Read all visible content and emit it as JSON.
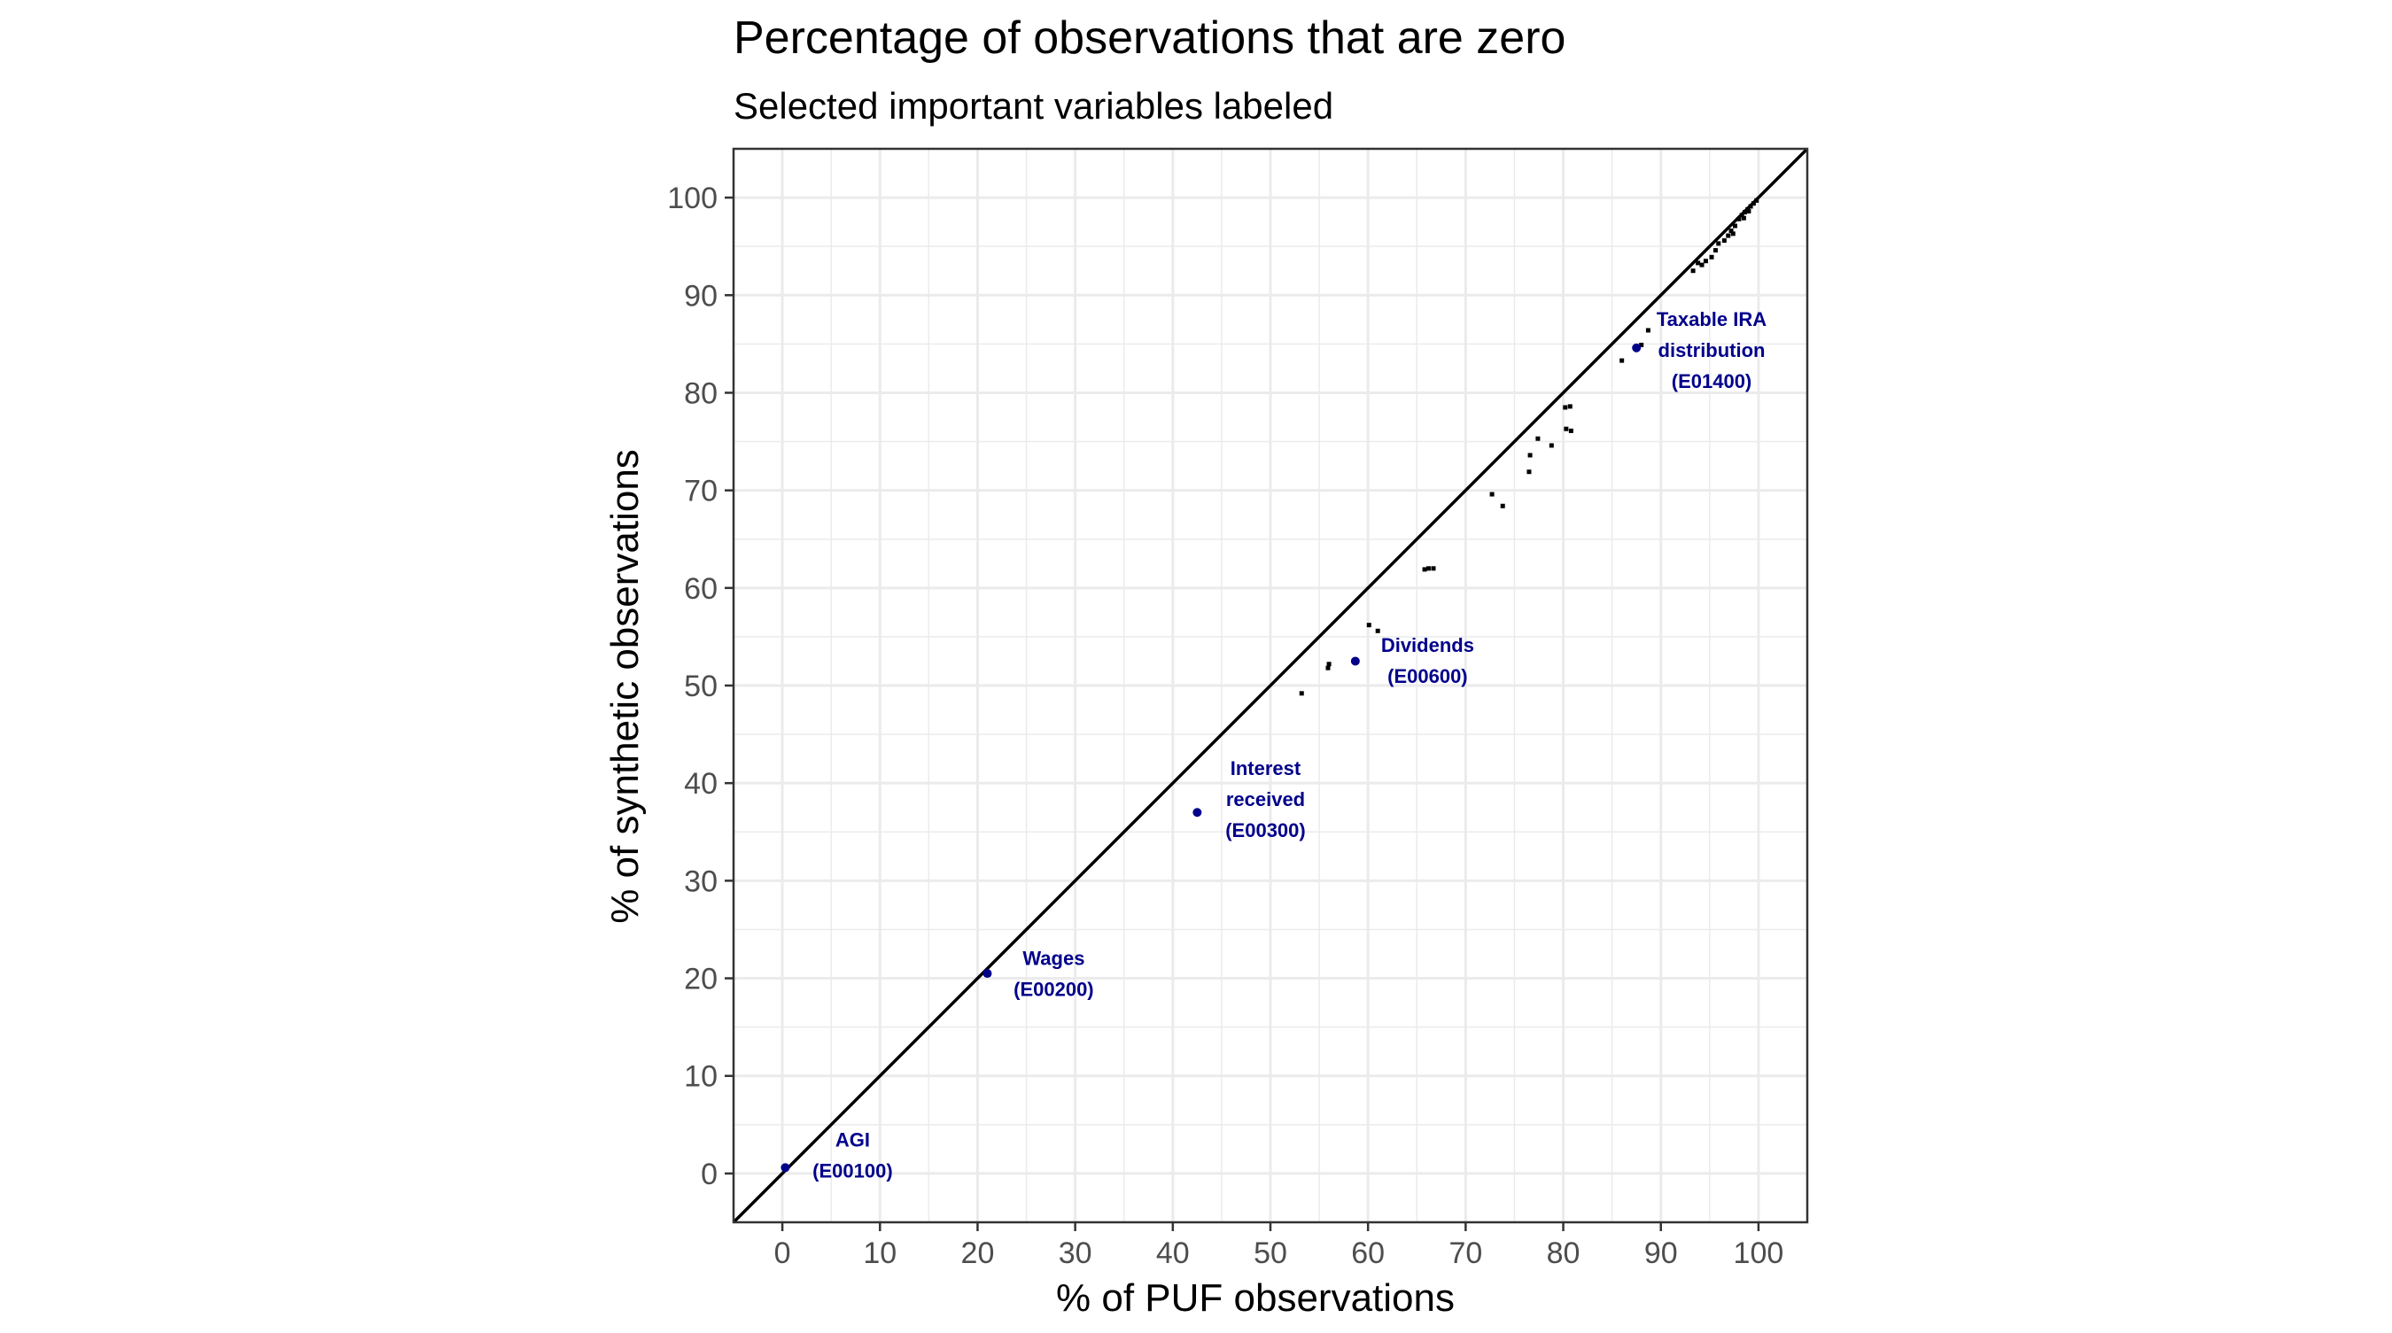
{
  "chart_data": {
    "type": "scatter",
    "title": "Percentage of observations that are zero",
    "subtitle": "Selected important variables labeled",
    "xlabel": "% of PUF observations",
    "ylabel": "% of synthetic observations",
    "xlim": [
      -5,
      105
    ],
    "ylim": [
      -5,
      105
    ],
    "xticks": [
      "0",
      "10",
      "20",
      "30",
      "40",
      "50",
      "60",
      "70",
      "80",
      "90",
      "100"
    ],
    "yticks": [
      "0",
      "10",
      "20",
      "30",
      "40",
      "50",
      "60",
      "70",
      "80",
      "90",
      "100"
    ],
    "grid": true,
    "reference_line": "y = x",
    "colors": {
      "points": "#000000",
      "highlight": "#00008b",
      "grid": "#ebebeb",
      "panel_border": "#333333"
    },
    "points": [
      {
        "x": 53.2,
        "y": 49.2
      },
      {
        "x": 55.9,
        "y": 51.8
      },
      {
        "x": 56.0,
        "y": 52.2
      },
      {
        "x": 60.1,
        "y": 56.2
      },
      {
        "x": 61.0,
        "y": 55.6
      },
      {
        "x": 65.8,
        "y": 61.9
      },
      {
        "x": 66.2,
        "y": 62.0
      },
      {
        "x": 66.7,
        "y": 62.0
      },
      {
        "x": 72.7,
        "y": 69.6
      },
      {
        "x": 73.8,
        "y": 68.4
      },
      {
        "x": 76.5,
        "y": 71.9
      },
      {
        "x": 76.6,
        "y": 73.6
      },
      {
        "x": 77.4,
        "y": 75.3
      },
      {
        "x": 78.8,
        "y": 74.6
      },
      {
        "x": 80.2,
        "y": 78.5
      },
      {
        "x": 80.7,
        "y": 78.6
      },
      {
        "x": 80.3,
        "y": 76.3
      },
      {
        "x": 80.8,
        "y": 76.1
      },
      {
        "x": 86.0,
        "y": 83.3
      },
      {
        "x": 88.0,
        "y": 84.9
      },
      {
        "x": 88.7,
        "y": 86.4
      },
      {
        "x": 93.3,
        "y": 92.5
      },
      {
        "x": 93.8,
        "y": 93.3
      },
      {
        "x": 94.6,
        "y": 93.5
      },
      {
        "x": 95.2,
        "y": 93.9
      },
      {
        "x": 95.6,
        "y": 94.6
      },
      {
        "x": 95.9,
        "y": 95.3
      },
      {
        "x": 96.5,
        "y": 95.6
      },
      {
        "x": 96.9,
        "y": 96.1
      },
      {
        "x": 97.2,
        "y": 96.6
      },
      {
        "x": 97.6,
        "y": 97.1
      },
      {
        "x": 98.0,
        "y": 97.8
      },
      {
        "x": 98.3,
        "y": 98.2
      },
      {
        "x": 98.6,
        "y": 98.5
      },
      {
        "x": 98.9,
        "y": 98.8
      },
      {
        "x": 99.2,
        "y": 99.1
      },
      {
        "x": 99.5,
        "y": 99.4
      },
      {
        "x": 99.8,
        "y": 99.7
      },
      {
        "x": 98.5,
        "y": 97.9
      },
      {
        "x": 97.4,
        "y": 96.3
      },
      {
        "x": 94.2,
        "y": 93.1
      },
      {
        "x": 99.0,
        "y": 98.6
      }
    ],
    "labeled_points": [
      {
        "x": 0.3,
        "y": 0.6,
        "label": [
          "AGI",
          "(E00100)"
        ],
        "lx": 7.2,
        "ly": 1.9
      },
      {
        "x": 21.0,
        "y": 20.5,
        "label": [
          "Wages",
          "(E00200)"
        ],
        "lx": 27.8,
        "ly": 20.5
      },
      {
        "x": 42.5,
        "y": 37.0,
        "label": [
          "Interest",
          "received",
          "(E00300)"
        ],
        "lx": 49.5,
        "ly": 38.4
      },
      {
        "x": 58.7,
        "y": 52.5,
        "label": [
          "Dividends",
          "(E00600)"
        ],
        "lx": 66.1,
        "ly": 52.6
      },
      {
        "x": 87.5,
        "y": 84.6,
        "label": [
          "Taxable IRA",
          "distribution",
          "(E01400)"
        ],
        "lx": 95.2,
        "ly": 84.4
      }
    ]
  }
}
